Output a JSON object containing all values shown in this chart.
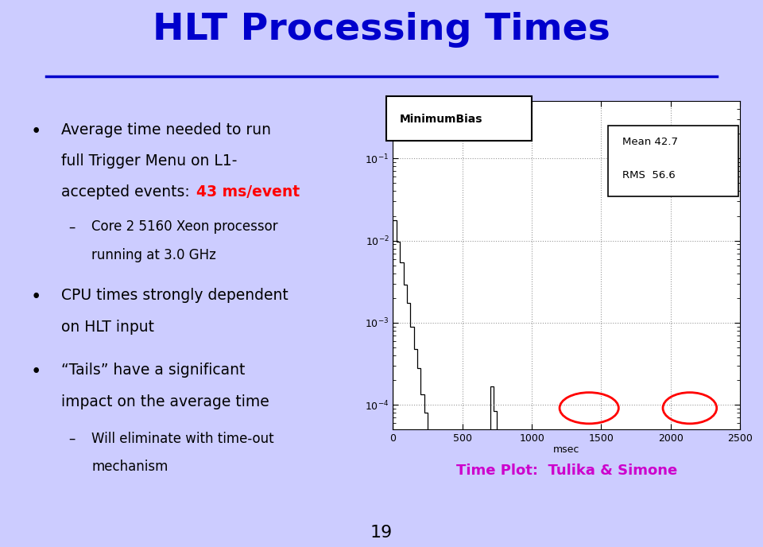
{
  "title": "HLT Processing Times",
  "title_color": "#0000CC",
  "slide_bg": "#CCCCFF",
  "bullet1_line1": "Average time needed to run",
  "bullet1_line2": "full Trigger Menu on L1-",
  "bullet1_line3a": "accepted events: ",
  "bullet1_highlight": "43 ms/event",
  "bullet1_color": "#FF0000",
  "sub1_line1": "Core 2 5160 Xeon processor",
  "sub1_line2": "running at 3.0 GHz",
  "bullet2_line1": "CPU times strongly dependent",
  "bullet2_line2": "on HLT input",
  "bullet3_line1": "“Tails” have a significant",
  "bullet3_line2": "impact on the average time",
  "sub3_line1": "Will eliminate with time-out",
  "sub3_line2": "mechanism",
  "caption": "Time Plot:  Tulika & Simone",
  "caption_color": "#CC00CC",
  "hist_label": "MinimumBias",
  "mean_text": "Mean 42.7",
  "rms_text": "RMS  56.6",
  "xlabel": "msec",
  "xlim": [
    0,
    2500
  ],
  "xticks": [
    0,
    500,
    1000,
    1500,
    2000,
    2500
  ],
  "page_number": "19"
}
